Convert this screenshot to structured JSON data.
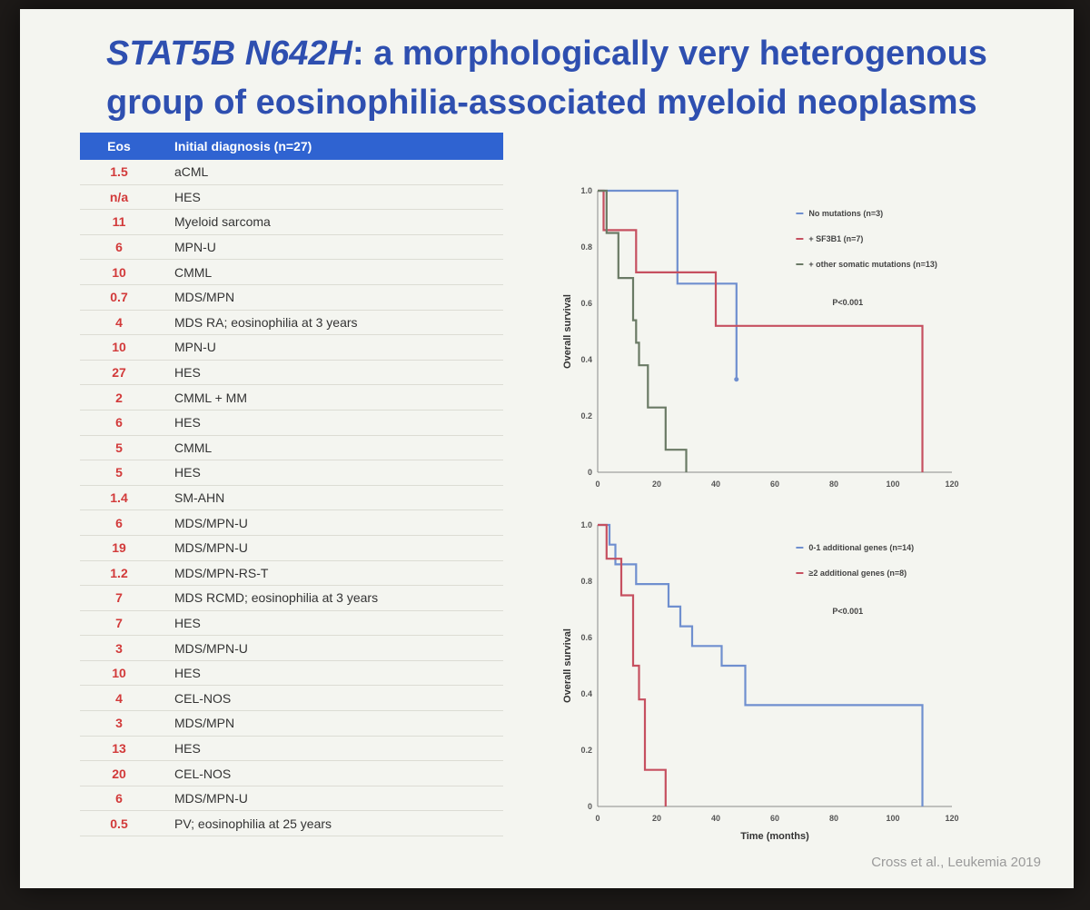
{
  "slide": {
    "title_gene": "STAT5B N642H",
    "title_rest": ": a morphologically very heterogenous group of eosinophilia-associated myeloid neoplasms",
    "table": {
      "header_eos": "Eos",
      "header_dx": "Initial diagnosis (n=27)",
      "rows": [
        {
          "eos": "1.5",
          "dx": "aCML"
        },
        {
          "eos": "n/a",
          "dx": "HES"
        },
        {
          "eos": "11",
          "dx": "Myeloid sarcoma"
        },
        {
          "eos": "6",
          "dx": "MPN-U"
        },
        {
          "eos": "10",
          "dx": "CMML"
        },
        {
          "eos": "0.7",
          "dx": "MDS/MPN"
        },
        {
          "eos": "4",
          "dx": "MDS RA; eosinophilia at 3 years"
        },
        {
          "eos": "10",
          "dx": "MPN-U"
        },
        {
          "eos": "27",
          "dx": "HES"
        },
        {
          "eos": "2",
          "dx": "CMML + MM"
        },
        {
          "eos": "6",
          "dx": "HES"
        },
        {
          "eos": "5",
          "dx": "CMML"
        },
        {
          "eos": "5",
          "dx": "HES"
        },
        {
          "eos": "1.4",
          "dx": "SM-AHN"
        },
        {
          "eos": "6",
          "dx": "MDS/MPN-U"
        },
        {
          "eos": "19",
          "dx": "MDS/MPN-U"
        },
        {
          "eos": "1.2",
          "dx": "MDS/MPN-RS-T"
        },
        {
          "eos": "7",
          "dx": "MDS RCMD; eosinophilia at 3 years"
        },
        {
          "eos": "7",
          "dx": "HES"
        },
        {
          "eos": "3",
          "dx": "MDS/MPN-U"
        },
        {
          "eos": "10",
          "dx": "HES"
        },
        {
          "eos": "4",
          "dx": "CEL-NOS"
        },
        {
          "eos": "3",
          "dx": "MDS/MPN"
        },
        {
          "eos": "13",
          "dx": "HES"
        },
        {
          "eos": "20",
          "dx": "CEL-NOS"
        },
        {
          "eos": "6",
          "dx": "MDS/MPN-U"
        },
        {
          "eos": "0.5",
          "dx": "PV; eosinophilia at 25 years"
        }
      ]
    },
    "citation": "Cross et al., Leukemia 2019"
  },
  "chart_data": [
    {
      "type": "line",
      "ylabel": "Overall survival",
      "xlabel": "",
      "xlim": [
        0,
        120
      ],
      "ylim": [
        0,
        1
      ],
      "xticks": [
        "0",
        "20",
        "40",
        "60",
        "80",
        "100",
        "120"
      ],
      "yticks": [
        "0",
        "0.2",
        "0.4",
        "0.6",
        "0.8",
        "1.0"
      ],
      "pvalue": "P<0.001",
      "step": true,
      "series": [
        {
          "name": "No mutations (n=3)",
          "color": "#6f8fcf",
          "x": [
            0,
            27,
            27,
            47,
            47
          ],
          "y": [
            1.0,
            1.0,
            0.67,
            0.67,
            0.33
          ]
        },
        {
          "name": "+ SF3B1 (n=7)",
          "color": "#c65060",
          "x": [
            0,
            2,
            2,
            13,
            13,
            40,
            40,
            110,
            110
          ],
          "y": [
            1.0,
            1.0,
            0.86,
            0.86,
            0.71,
            0.71,
            0.52,
            0.52,
            0.0
          ]
        },
        {
          "name": "+ other somatic mutations (n=13)",
          "color": "#6a7a65",
          "x": [
            0,
            3,
            3,
            7,
            7,
            12,
            12,
            13,
            13,
            14,
            14,
            17,
            17,
            23,
            23,
            30,
            30
          ],
          "y": [
            1.0,
            1.0,
            0.85,
            0.85,
            0.69,
            0.69,
            0.54,
            0.54,
            0.46,
            0.46,
            0.38,
            0.38,
            0.23,
            0.23,
            0.08,
            0.08,
            0.0
          ]
        }
      ]
    },
    {
      "type": "line",
      "ylabel": "Overall survival",
      "xlabel": "Time (months)",
      "xlim": [
        0,
        120
      ],
      "ylim": [
        0,
        1
      ],
      "xticks": [
        "0",
        "20",
        "40",
        "60",
        "80",
        "100",
        "120"
      ],
      "yticks": [
        "0",
        "0.2",
        "0.4",
        "0.6",
        "0.8",
        "1.0"
      ],
      "pvalue": "P<0.001",
      "step": true,
      "series": [
        {
          "name": "0-1 additional genes (n=14)",
          "color": "#6f8fcf",
          "x": [
            0,
            4,
            4,
            6,
            6,
            13,
            13,
            24,
            24,
            28,
            28,
            32,
            32,
            42,
            42,
            50,
            50,
            110,
            110
          ],
          "y": [
            1.0,
            1.0,
            0.93,
            0.93,
            0.86,
            0.86,
            0.79,
            0.79,
            0.71,
            0.71,
            0.64,
            0.64,
            0.57,
            0.57,
            0.5,
            0.5,
            0.36,
            0.36,
            0.0
          ]
        },
        {
          "name": "≥2 additional genes (n=8)",
          "color": "#c65060",
          "x": [
            0,
            3,
            3,
            8,
            8,
            12,
            12,
            14,
            14,
            16,
            16,
            23,
            23
          ],
          "y": [
            1.0,
            1.0,
            0.88,
            0.88,
            0.75,
            0.75,
            0.5,
            0.5,
            0.38,
            0.38,
            0.13,
            0.13,
            0.0
          ]
        }
      ]
    }
  ]
}
